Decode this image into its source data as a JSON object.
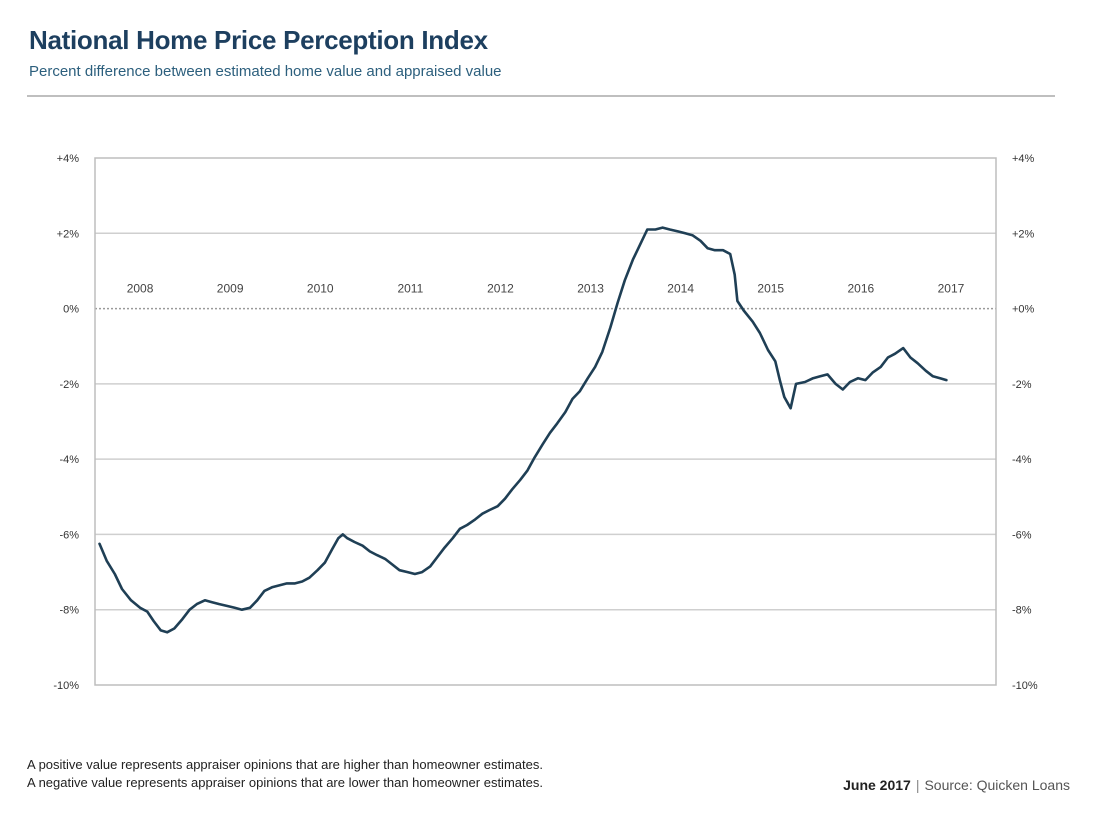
{
  "chart_data": {
    "type": "line",
    "title": "National Home Price Perception Index",
    "subtitle": "Percent difference between estimated home value and appraised value",
    "ylim": [
      -10,
      4
    ],
    "y_ticks": [
      {
        "value": 4,
        "left_label": "+4%",
        "right_label": "+4%"
      },
      {
        "value": 2,
        "left_label": "+2%",
        "right_label": "+2%"
      },
      {
        "value": 0,
        "left_label": "0%",
        "right_label": "+0%"
      },
      {
        "value": -2,
        "left_label": "-2%",
        "right_label": "-2%"
      },
      {
        "value": -4,
        "left_label": "-4%",
        "right_label": "-4%"
      },
      {
        "value": -6,
        "left_label": "-6%",
        "right_label": "-6%"
      },
      {
        "value": -8,
        "left_label": "-8%",
        "right_label": "-8%"
      },
      {
        "value": -10,
        "left_label": "-10%",
        "right_label": "-10%"
      }
    ],
    "year_labels": [
      "2008",
      "2009",
      "2010",
      "2011",
      "2012",
      "2013",
      "2014",
      "2015",
      "2016",
      "2017"
    ],
    "x_domain": [
      2007.5,
      2017.5
    ],
    "grid": true,
    "zero_line": "dotted",
    "series": [
      {
        "name": "National Home Price Perception Index",
        "color": "#1f3f55",
        "points": [
          [
            2007.55,
            -6.25
          ],
          [
            2007.63,
            -6.7
          ],
          [
            2007.72,
            -7.05
          ],
          [
            2007.8,
            -7.45
          ],
          [
            2007.9,
            -7.75
          ],
          [
            2008.0,
            -7.95
          ],
          [
            2008.08,
            -8.05
          ],
          [
            2008.15,
            -8.3
          ],
          [
            2008.23,
            -8.55
          ],
          [
            2008.3,
            -8.6
          ],
          [
            2008.38,
            -8.5
          ],
          [
            2008.47,
            -8.25
          ],
          [
            2008.55,
            -8.0
          ],
          [
            2008.63,
            -7.85
          ],
          [
            2008.72,
            -7.75
          ],
          [
            2008.8,
            -7.8
          ],
          [
            2008.88,
            -7.85
          ],
          [
            2008.97,
            -7.9
          ],
          [
            2009.05,
            -7.95
          ],
          [
            2009.13,
            -8.0
          ],
          [
            2009.22,
            -7.95
          ],
          [
            2009.3,
            -7.75
          ],
          [
            2009.38,
            -7.5
          ],
          [
            2009.47,
            -7.4
          ],
          [
            2009.55,
            -7.35
          ],
          [
            2009.63,
            -7.3
          ],
          [
            2009.72,
            -7.3
          ],
          [
            2009.8,
            -7.25
          ],
          [
            2009.88,
            -7.15
          ],
          [
            2009.97,
            -6.95
          ],
          [
            2010.05,
            -6.75
          ],
          [
            2010.13,
            -6.4
          ],
          [
            2010.2,
            -6.1
          ],
          [
            2010.25,
            -6.0
          ],
          [
            2010.3,
            -6.1
          ],
          [
            2010.38,
            -6.2
          ],
          [
            2010.47,
            -6.3
          ],
          [
            2010.55,
            -6.45
          ],
          [
            2010.63,
            -6.55
          ],
          [
            2010.72,
            -6.65
          ],
          [
            2010.8,
            -6.8
          ],
          [
            2010.88,
            -6.95
          ],
          [
            2010.97,
            -7.0
          ],
          [
            2011.05,
            -7.05
          ],
          [
            2011.13,
            -7.0
          ],
          [
            2011.22,
            -6.85
          ],
          [
            2011.3,
            -6.6
          ],
          [
            2011.38,
            -6.35
          ],
          [
            2011.47,
            -6.1
          ],
          [
            2011.55,
            -5.85
          ],
          [
            2011.63,
            -5.75
          ],
          [
            2011.72,
            -5.6
          ],
          [
            2011.8,
            -5.45
          ],
          [
            2011.88,
            -5.35
          ],
          [
            2011.97,
            -5.25
          ],
          [
            2012.05,
            -5.05
          ],
          [
            2012.13,
            -4.8
          ],
          [
            2012.22,
            -4.55
          ],
          [
            2012.3,
            -4.3
          ],
          [
            2012.38,
            -3.95
          ],
          [
            2012.47,
            -3.6
          ],
          [
            2012.55,
            -3.3
          ],
          [
            2012.63,
            -3.05
          ],
          [
            2012.72,
            -2.75
          ],
          [
            2012.8,
            -2.4
          ],
          [
            2012.88,
            -2.2
          ],
          [
            2012.97,
            -1.85
          ],
          [
            2013.05,
            -1.55
          ],
          [
            2013.13,
            -1.15
          ],
          [
            2013.22,
            -0.5
          ],
          [
            2013.3,
            0.15
          ],
          [
            2013.38,
            0.75
          ],
          [
            2013.47,
            1.3
          ],
          [
            2013.55,
            1.7
          ],
          [
            2013.63,
            2.1
          ],
          [
            2013.72,
            2.1
          ],
          [
            2013.8,
            2.15
          ],
          [
            2013.88,
            2.1
          ],
          [
            2013.97,
            2.05
          ],
          [
            2014.05,
            2.0
          ],
          [
            2014.13,
            1.95
          ],
          [
            2014.22,
            1.8
          ],
          [
            2014.3,
            1.6
          ],
          [
            2014.38,
            1.55
          ],
          [
            2014.47,
            1.55
          ],
          [
            2014.55,
            1.45
          ],
          [
            2014.6,
            0.9
          ],
          [
            2014.63,
            0.2
          ],
          [
            2014.7,
            -0.05
          ],
          [
            2014.8,
            -0.35
          ],
          [
            2014.88,
            -0.65
          ],
          [
            2014.97,
            -1.1
          ],
          [
            2015.05,
            -1.4
          ],
          [
            2015.1,
            -1.9
          ],
          [
            2015.15,
            -2.35
          ],
          [
            2015.22,
            -2.65
          ],
          [
            2015.28,
            -2.0
          ],
          [
            2015.38,
            -1.95
          ],
          [
            2015.47,
            -1.85
          ],
          [
            2015.55,
            -1.8
          ],
          [
            2015.63,
            -1.75
          ],
          [
            2015.72,
            -2.0
          ],
          [
            2015.8,
            -2.15
          ],
          [
            2015.88,
            -1.95
          ],
          [
            2015.97,
            -1.85
          ],
          [
            2016.05,
            -1.9
          ],
          [
            2016.13,
            -1.7
          ],
          [
            2016.22,
            -1.55
          ],
          [
            2016.3,
            -1.3
          ],
          [
            2016.38,
            -1.2
          ],
          [
            2016.47,
            -1.05
          ],
          [
            2016.55,
            -1.3
          ],
          [
            2016.63,
            -1.45
          ],
          [
            2016.72,
            -1.65
          ],
          [
            2016.8,
            -1.8
          ],
          [
            2016.88,
            -1.85
          ],
          [
            2016.95,
            -1.9
          ]
        ]
      }
    ]
  },
  "notes": {
    "positive": "A positive value represents appraiser opinions that are higher than homeowner estimates.",
    "negative": "A negative value represents appraiser opinions that are lower than homeowner estimates."
  },
  "footer": {
    "date": "June 2017",
    "separator": "|",
    "source": "Source: Quicken Loans"
  }
}
